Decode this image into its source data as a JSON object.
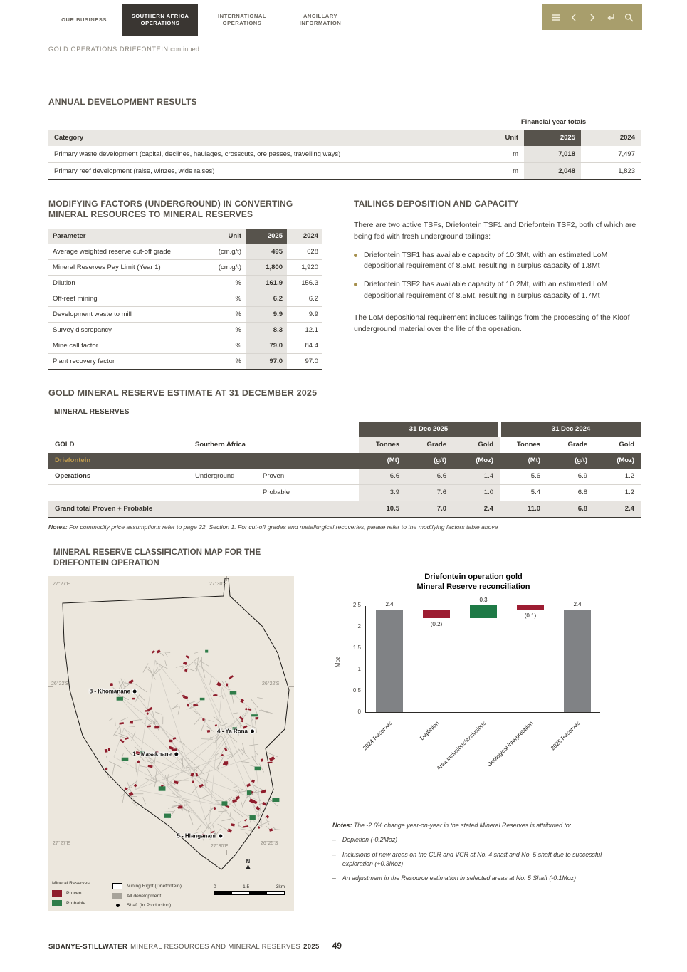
{
  "nav": {
    "tabs": [
      {
        "label": "OUR BUSINESS",
        "active": false
      },
      {
        "label": "SOUTHERN AFRICA OPERATIONS",
        "active": true
      },
      {
        "label": "INTERNATIONAL OPERATIONS",
        "active": false
      },
      {
        "label": "ANCILLARY INFORMATION",
        "active": false
      }
    ],
    "toolbar_icons": [
      "menu",
      "chevron-left",
      "chevron-right",
      "return",
      "search"
    ],
    "toolbar_color": "#a89e6c",
    "breadcrumb_main": "GOLD OPERATIONS DRIEFONTEIN",
    "breadcrumb_suffix": "continued"
  },
  "annual_development": {
    "title": "ANNUAL DEVELOPMENT RESULTS",
    "group_header": "Financial year totals",
    "columns": {
      "category": "Category",
      "unit": "Unit",
      "y2025": "2025",
      "y2024": "2024"
    },
    "rows": [
      {
        "category": "Primary waste development (capital, declines, haulages, crosscuts, ore passes, travelling ways)",
        "unit": "m",
        "y2025": "7,018",
        "y2024": "7,497"
      },
      {
        "category": "Primary reef development (raise, winzes, wide raises)",
        "unit": "m",
        "y2025": "2,048",
        "y2024": "1,823"
      }
    ]
  },
  "modifying_factors": {
    "title": "MODIFYING FACTORS (UNDERGROUND) IN CONVERTING MINERAL RESOURCES TO MINERAL RESERVES",
    "columns": {
      "parameter": "Parameter",
      "unit": "Unit",
      "y2025": "2025",
      "y2024": "2024"
    },
    "rows": [
      {
        "parameter": "Average weighted reserve cut-off grade",
        "unit": "(cm.g/t)",
        "y2025": "495",
        "y2024": "628"
      },
      {
        "parameter": "Mineral Reserves Pay Limit (Year 1)",
        "unit": "(cm.g/t)",
        "y2025": "1,800",
        "y2024": "1,920"
      },
      {
        "parameter": "Dilution",
        "unit": "%",
        "y2025": "161.9",
        "y2024": "156.3"
      },
      {
        "parameter": "Off-reef mining",
        "unit": "%",
        "y2025": "6.2",
        "y2024": "6.2"
      },
      {
        "parameter": "Development waste to mill",
        "unit": "%",
        "y2025": "9.9",
        "y2024": "9.9"
      },
      {
        "parameter": "Survey discrepancy",
        "unit": "%",
        "y2025": "8.3",
        "y2024": "12.1"
      },
      {
        "parameter": "Mine call factor",
        "unit": "%",
        "y2025": "79.0",
        "y2024": "84.4"
      },
      {
        "parameter": "Plant recovery factor",
        "unit": "%",
        "y2025": "97.0",
        "y2024": "97.0"
      }
    ]
  },
  "tailings": {
    "title": "TAILINGS DEPOSITION AND CAPACITY",
    "intro": "There are two active TSFs, Driefontein TSF1 and Driefontein TSF2, both of which are being fed with fresh underground tailings:",
    "bullets": [
      "Driefontein TSF1 has available capacity of 10.3Mt, with an estimated LoM depositional requirement of 8.5Mt, resulting in surplus capacity of 1.8Mt",
      "Driefontein TSF2 has available capacity of 10.2Mt, with an estimated LoM depositional requirement of 8.5Mt, resulting in surplus capacity of 1.7Mt"
    ],
    "outro": "The LoM depositional requirement includes tailings from the processing of the Kloof underground material over the life of the operation."
  },
  "reserve_estimate": {
    "title": "GOLD MINERAL RESERVE ESTIMATE AT 31 DECEMBER 2025",
    "subtitle": "MINERAL RESERVES",
    "group_2025": "31 Dec 2025",
    "group_2024": "31 Dec 2024",
    "commodity": "GOLD",
    "region": "Southern Africa",
    "operation": "Driefontein",
    "measure_headers": [
      "Tonnes",
      "Grade",
      "Gold",
      "Tonnes",
      "Grade",
      "Gold"
    ],
    "unit_headers": [
      "(Mt)",
      "(g/t)",
      "(Moz)",
      "(Mt)",
      "(g/t)",
      "(Moz)"
    ],
    "rows": [
      {
        "area": "Operations",
        "mining": "Underground",
        "category": "Proven",
        "values": [
          "6.6",
          "6.6",
          "1.4",
          "5.6",
          "6.9",
          "1.2"
        ]
      },
      {
        "area": "",
        "mining": "",
        "category": "Probable",
        "values": [
          "3.9",
          "7.6",
          "1.0",
          "5.4",
          "6.8",
          "1.2"
        ]
      }
    ],
    "total_label": "Grand total Proven + Probable",
    "total_values": [
      "10.5",
      "7.0",
      "2.4",
      "11.0",
      "6.8",
      "2.4"
    ],
    "notes_label": "Notes:",
    "notes_text": "For commodity price assumptions refer to page 22, Section 1. For cut-off grades and metallurgical recoveries, please refer to the modifying factors table above"
  },
  "map": {
    "title": "MINERAL RESERVE CLASSIFICATION MAP FOR THE DRIEFONTEIN OPERATION",
    "coords": {
      "top_left": "27°27'E",
      "top_mid": "27°30'E",
      "mid_left": "26°22'S",
      "mid_right": "26°22'S",
      "bottom_left": "27°27'E",
      "bottom_mid": "27°30'E",
      "bottom_right": "26°25'S"
    },
    "shafts": [
      "8 - Khomanane",
      "4 - Ya Rona",
      "1 - Masakhane",
      "5 - Hlanganani"
    ],
    "legend": {
      "reserves_title": "Mineral Reserves",
      "proven": "Proven",
      "probable": "Probable",
      "mining_right": "Mining Right (Driefontein)",
      "all_development": "All development",
      "shaft": "Shaft (In Production)",
      "proven_color": "#8f1d2c",
      "probable_color": "#2f7c49",
      "development_color": "#a7a39a"
    },
    "scale": {
      "start": "0",
      "mid": "1.5",
      "end": "3km"
    },
    "north": "N"
  },
  "chart_data": {
    "type": "bar",
    "subtype": "waterfall",
    "title_line1": "Driefontein operation gold",
    "title_line2": "Mineral Reserve reconciliation",
    "ylabel": "Moz",
    "ylim": [
      0,
      2.5
    ],
    "ytick_labels": [
      "0",
      "0.5",
      "1",
      "1.5",
      "2",
      "2.5"
    ],
    "categories": [
      "2024 Reserves",
      "Depletion",
      "Area inclusions/exclusions",
      "Geological interpretation",
      "2025 Reserves"
    ],
    "values": [
      2.4,
      -0.2,
      0.3,
      -0.1,
      2.4
    ],
    "labels": [
      "2.4",
      "(0.2)",
      "0.3",
      "(0.1)",
      "2.4"
    ],
    "bar_types": [
      "total",
      "decrease",
      "increase",
      "decrease",
      "total"
    ],
    "colors": {
      "total": "#808285",
      "decrease": "#9d1d32",
      "increase": "#1e7a46"
    },
    "legend_position": "none",
    "grid": false
  },
  "chart_notes": {
    "label": "Notes:",
    "intro": "The -2.6% change year-on-year in the stated Mineral Reserves is attributed to:",
    "dash": "–",
    "items": [
      "Depletion (-0.2Moz)",
      "Inclusions of new areas on the CLR and VCR at No. 4 shaft and No. 5 shaft due to successful exploration (+0.3Moz)",
      "An adjustment in the Resource estimation in selected areas at No. 5 Shaft (-0.1Moz)"
    ]
  },
  "footer": {
    "brand": "SIBANYE-STILLWATER",
    "title": "MINERAL RESOURCES AND MINERAL RESERVES",
    "year": "2025",
    "page": "49"
  }
}
